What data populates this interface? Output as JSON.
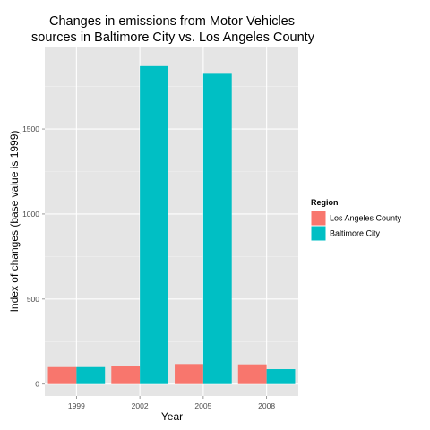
{
  "chart_data": {
    "type": "bar",
    "title": "Changes in emissions from Motor Vehicles\nsources in Baltimore City vs. Los Angeles County",
    "xlabel": "Year",
    "ylabel": "Index of changes (base value is 1999)",
    "categories": [
      "1999",
      "2002",
      "2005",
      "2008"
    ],
    "series": [
      {
        "name": "Los Angeles County",
        "color": "#F8766D",
        "values": [
          100,
          109,
          118,
          116
        ]
      },
      {
        "name": "Baltimore City",
        "color": "#00BFC4",
        "values": [
          100,
          1870,
          1825,
          88
        ]
      }
    ],
    "ylim": [
      -70,
      1985
    ],
    "yticks": [
      0,
      500,
      1000,
      1500
    ],
    "grid": true,
    "panel_background": "#E5E5E5",
    "grid_color": "#FFFFFF",
    "legend": {
      "title": "Region",
      "placement": "right"
    }
  }
}
